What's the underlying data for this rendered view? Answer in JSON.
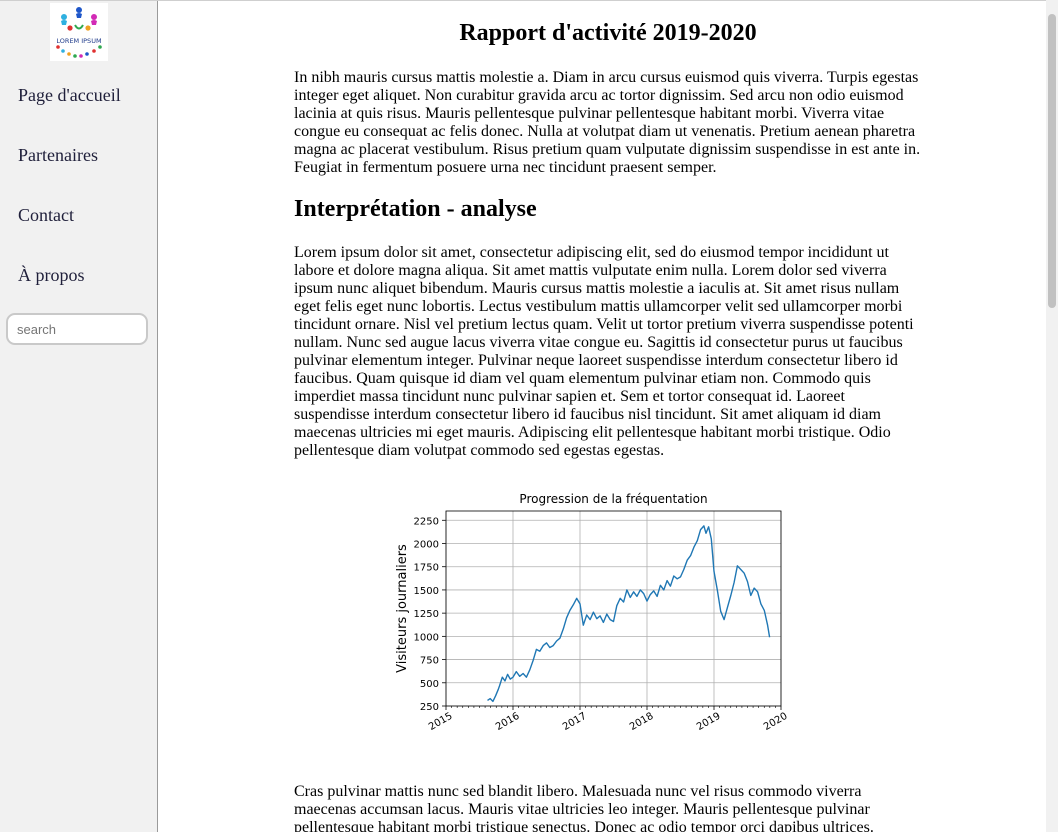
{
  "logo": {
    "text": "LOREM IPSUM"
  },
  "sidebar": {
    "items": [
      {
        "label": "Page d'accueil"
      },
      {
        "label": "Partenaires"
      },
      {
        "label": "Contact"
      },
      {
        "label": "À propos"
      }
    ],
    "search_placeholder": "search"
  },
  "main": {
    "title": "Rapport d'activité 2019-2020",
    "intro": "In nibh mauris cursus mattis molestie a. Diam in arcu cursus euismod quis viverra. Turpis egestas integer eget aliquet. Non curabitur gravida arcu ac tortor dignissim. Sed arcu non odio euismod lacinia at quis risus. Mauris pellentesque pulvinar pellentesque habitant morbi. Viverra vitae congue eu consequat ac felis donec. Nulla at volutpat diam ut venenatis. Pretium aenean pharetra magna ac placerat vestibulum. Risus pretium quam vulputate dignissim suspendisse in est ante in. Feugiat in fermentum posuere urna nec tincidunt praesent semper.",
    "section_title": "Interprétation - analyse",
    "analysis": "Lorem ipsum dolor sit amet, consectetur adipiscing elit, sed do eiusmod tempor incididunt ut labore et dolore magna aliqua. Sit amet mattis vulputate enim nulla. Lorem dolor sed viverra ipsum nunc aliquet bibendum. Mauris cursus mattis molestie a iaculis at. Sit amet risus nullam eget felis eget nunc lobortis. Lectus vestibulum mattis ullamcorper velit sed ullamcorper morbi tincidunt ornare. Nisl vel pretium lectus quam. Velit ut tortor pretium viverra suspendisse potenti nullam. Nunc sed augue lacus viverra vitae congue eu. Sagittis id consectetur purus ut faucibus pulvinar elementum integer. Pulvinar neque laoreet suspendisse interdum consectetur libero id faucibus. Quam quisque id diam vel quam elementum pulvinar etiam non. Commodo quis imperdiet massa tincidunt nunc pulvinar sapien et. Sem et tortor consequat id. Laoreet suspendisse interdum consectetur libero id faucibus nisl tincidunt. Sit amet aliquam id diam maecenas ultricies mi eget mauris. Adipiscing elit pellentesque habitant morbi tristique. Odio pellentesque diam volutpat commodo sed egestas egestas.",
    "closing": "Cras pulvinar mattis nunc sed blandit libero. Malesuada nunc vel risus commodo viverra maecenas accumsan lacus. Mauris vitae ultricies leo integer. Mauris pellentesque pulvinar pellentesque habitant morbi tristique senectus. Donec ac odio tempor orci dapibus ultrices."
  },
  "chart_data": {
    "type": "line",
    "title": "Progression de la fréquentation",
    "xlabel": "",
    "ylabel": "Visiteurs journaliers",
    "xlim": [
      2015,
      2020
    ],
    "ylim": [
      250,
      2350
    ],
    "xticks": [
      2015,
      2016,
      2017,
      2018,
      2019,
      2020
    ],
    "yticks": [
      250,
      500,
      750,
      1000,
      1250,
      1500,
      1750,
      2000,
      2250
    ],
    "grid": true,
    "line_color": "#1f77b4",
    "series": [
      {
        "x": [
          2015.62,
          2015.66,
          2015.7,
          2015.74,
          2015.78,
          2015.8,
          2015.84,
          2015.88,
          2015.92,
          2015.96,
          2016.0,
          2016.05,
          2016.1,
          2016.15,
          2016.2,
          2016.25,
          2016.3,
          2016.35,
          2016.4,
          2016.45,
          2016.5,
          2016.55,
          2016.6,
          2016.65,
          2016.7,
          2016.75,
          2016.8,
          2016.85,
          2016.9,
          2016.95,
          2017.0,
          2017.05,
          2017.1,
          2017.15,
          2017.2,
          2017.25,
          2017.3,
          2017.35,
          2017.4,
          2017.45,
          2017.5,
          2017.55,
          2017.6,
          2017.65,
          2017.7,
          2017.75,
          2017.8,
          2017.85,
          2017.9,
          2017.95,
          2018.0,
          2018.05,
          2018.1,
          2018.15,
          2018.2,
          2018.25,
          2018.3,
          2018.35,
          2018.4,
          2018.45,
          2018.5,
          2018.55,
          2018.6,
          2018.65,
          2018.7,
          2018.75,
          2018.8,
          2018.85,
          2018.88,
          2018.92,
          2018.96,
          2019.0,
          2019.05,
          2019.1,
          2019.15,
          2019.2,
          2019.25,
          2019.3,
          2019.35,
          2019.4,
          2019.45,
          2019.5,
          2019.55,
          2019.6,
          2019.65,
          2019.7,
          2019.75,
          2019.8,
          2019.83
        ],
        "y": [
          310,
          330,
          300,
          360,
          430,
          470,
          560,
          520,
          590,
          540,
          560,
          620,
          570,
          600,
          560,
          640,
          740,
          860,
          840,
          900,
          930,
          880,
          900,
          950,
          980,
          1080,
          1200,
          1280,
          1340,
          1410,
          1350,
          1120,
          1230,
          1180,
          1260,
          1190,
          1220,
          1150,
          1240,
          1180,
          1160,
          1330,
          1410,
          1370,
          1500,
          1420,
          1480,
          1430,
          1500,
          1460,
          1380,
          1450,
          1490,
          1430,
          1550,
          1500,
          1600,
          1540,
          1650,
          1620,
          1640,
          1720,
          1820,
          1870,
          1960,
          2030,
          2150,
          2190,
          2110,
          2180,
          2050,
          1700,
          1500,
          1270,
          1180,
          1310,
          1440,
          1580,
          1760,
          1720,
          1680,
          1590,
          1440,
          1520,
          1480,
          1350,
          1280,
          1120,
          990
        ]
      }
    ]
  }
}
